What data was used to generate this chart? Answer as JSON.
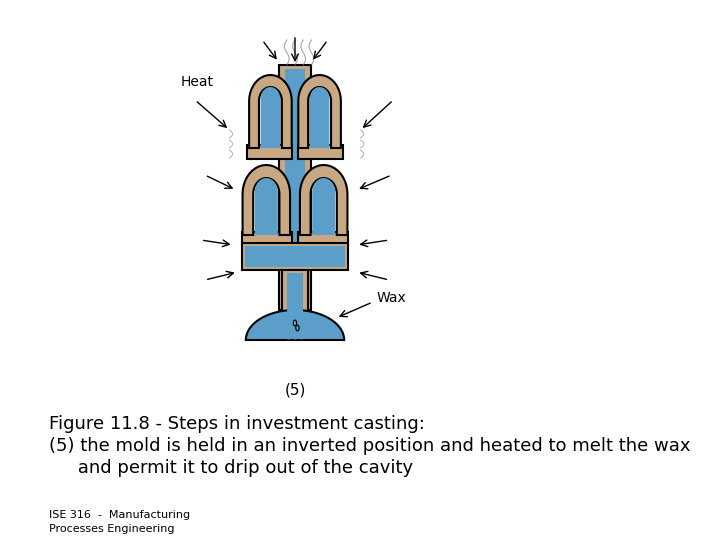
{
  "title_line1": "Figure 11.8 ‑ Steps in investment casting:",
  "title_line2": "(5) the mold is held in an inverted position and heated to melt the wax",
  "title_line3": "     and permit it to drip out of the cavity",
  "footer_line1": "ISE 316  -  Manufacturing",
  "footer_line2": "Processes Engineering",
  "label_heat": "Heat",
  "label_wax": "Wax",
  "label_step": "(5)",
  "bg_color": "#ffffff",
  "mold_color": "#c8a882",
  "wax_color": "#5b9ec9",
  "text_color": "#000000",
  "title_fontsize": 13,
  "footer_fontsize": 8,
  "label_fontsize": 10
}
